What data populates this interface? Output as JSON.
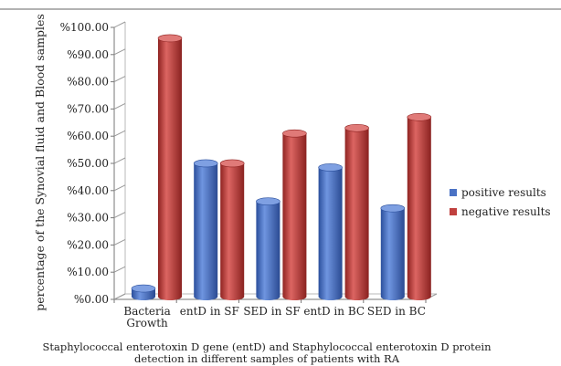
{
  "chart_data": {
    "type": "bar",
    "title": "",
    "xlabel": "Staphylococcal enterotoxin D gene (entD) and Staphylococcal enterotoxin D protein detection in  different samples of patients with RA",
    "xlabel_lines": [
      "Staphylococcal enterotoxin D gene (entD) and Staphylococcal enterotoxin D protein",
      "detection in  different samples of patients with RA"
    ],
    "ylabel": "percentage of the Synovial fluid and Blood samples",
    "ylim": [
      0,
      100
    ],
    "yticks": [
      "%0.00",
      "%10.00",
      "%20.00",
      "%30.00",
      "%40.00",
      "%50.00",
      "%60.00",
      "%70.00",
      "%80.00",
      "%90.00",
      "%100.00"
    ],
    "categories": [
      "Bacteria Growth",
      "entD in SF",
      "SED in SF",
      "entD in BC",
      "SED in BC"
    ],
    "category_lines": [
      [
        "Bacteria",
        "Growth"
      ],
      [
        "entD in SF"
      ],
      [
        "SED in SF"
      ],
      [
        "entD in BC"
      ],
      [
        "SED in BC"
      ]
    ],
    "series": [
      {
        "name": "positive results",
        "color": "#4a72c4",
        "values": [
          3,
          49,
          35,
          47.5,
          32.5
        ]
      },
      {
        "name": "negative results",
        "color": "#c0403e",
        "values": [
          95,
          49,
          60,
          62,
          66
        ]
      }
    ],
    "grid": false,
    "legend_position": "right",
    "style": "3d-cylinder"
  }
}
